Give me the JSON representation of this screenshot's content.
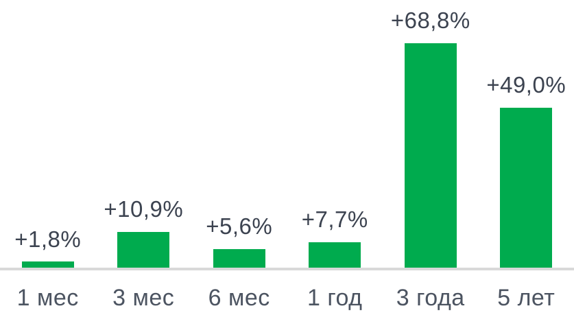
{
  "chart_data": {
    "type": "bar",
    "categories": [
      "1 мес",
      "3 мес",
      "6 мес",
      "1 год",
      "3 года",
      "5 лет"
    ],
    "values": [
      1.8,
      10.9,
      5.6,
      7.7,
      68.8,
      49.0
    ],
    "labels": [
      "+1,8%",
      "+10,9%",
      "+5,6%",
      "+7,7%",
      "+68,8%",
      "+49,0%"
    ],
    "title": "",
    "xlabel": "",
    "ylabel": "",
    "ylim": [
      0,
      68.8
    ],
    "grid": "off",
    "legend": "none",
    "bar_color": "#00AB4E",
    "axis_line_color": "#D9D9D9",
    "value_label_color": "#3C4350",
    "category_label_color": "#4C5461"
  }
}
